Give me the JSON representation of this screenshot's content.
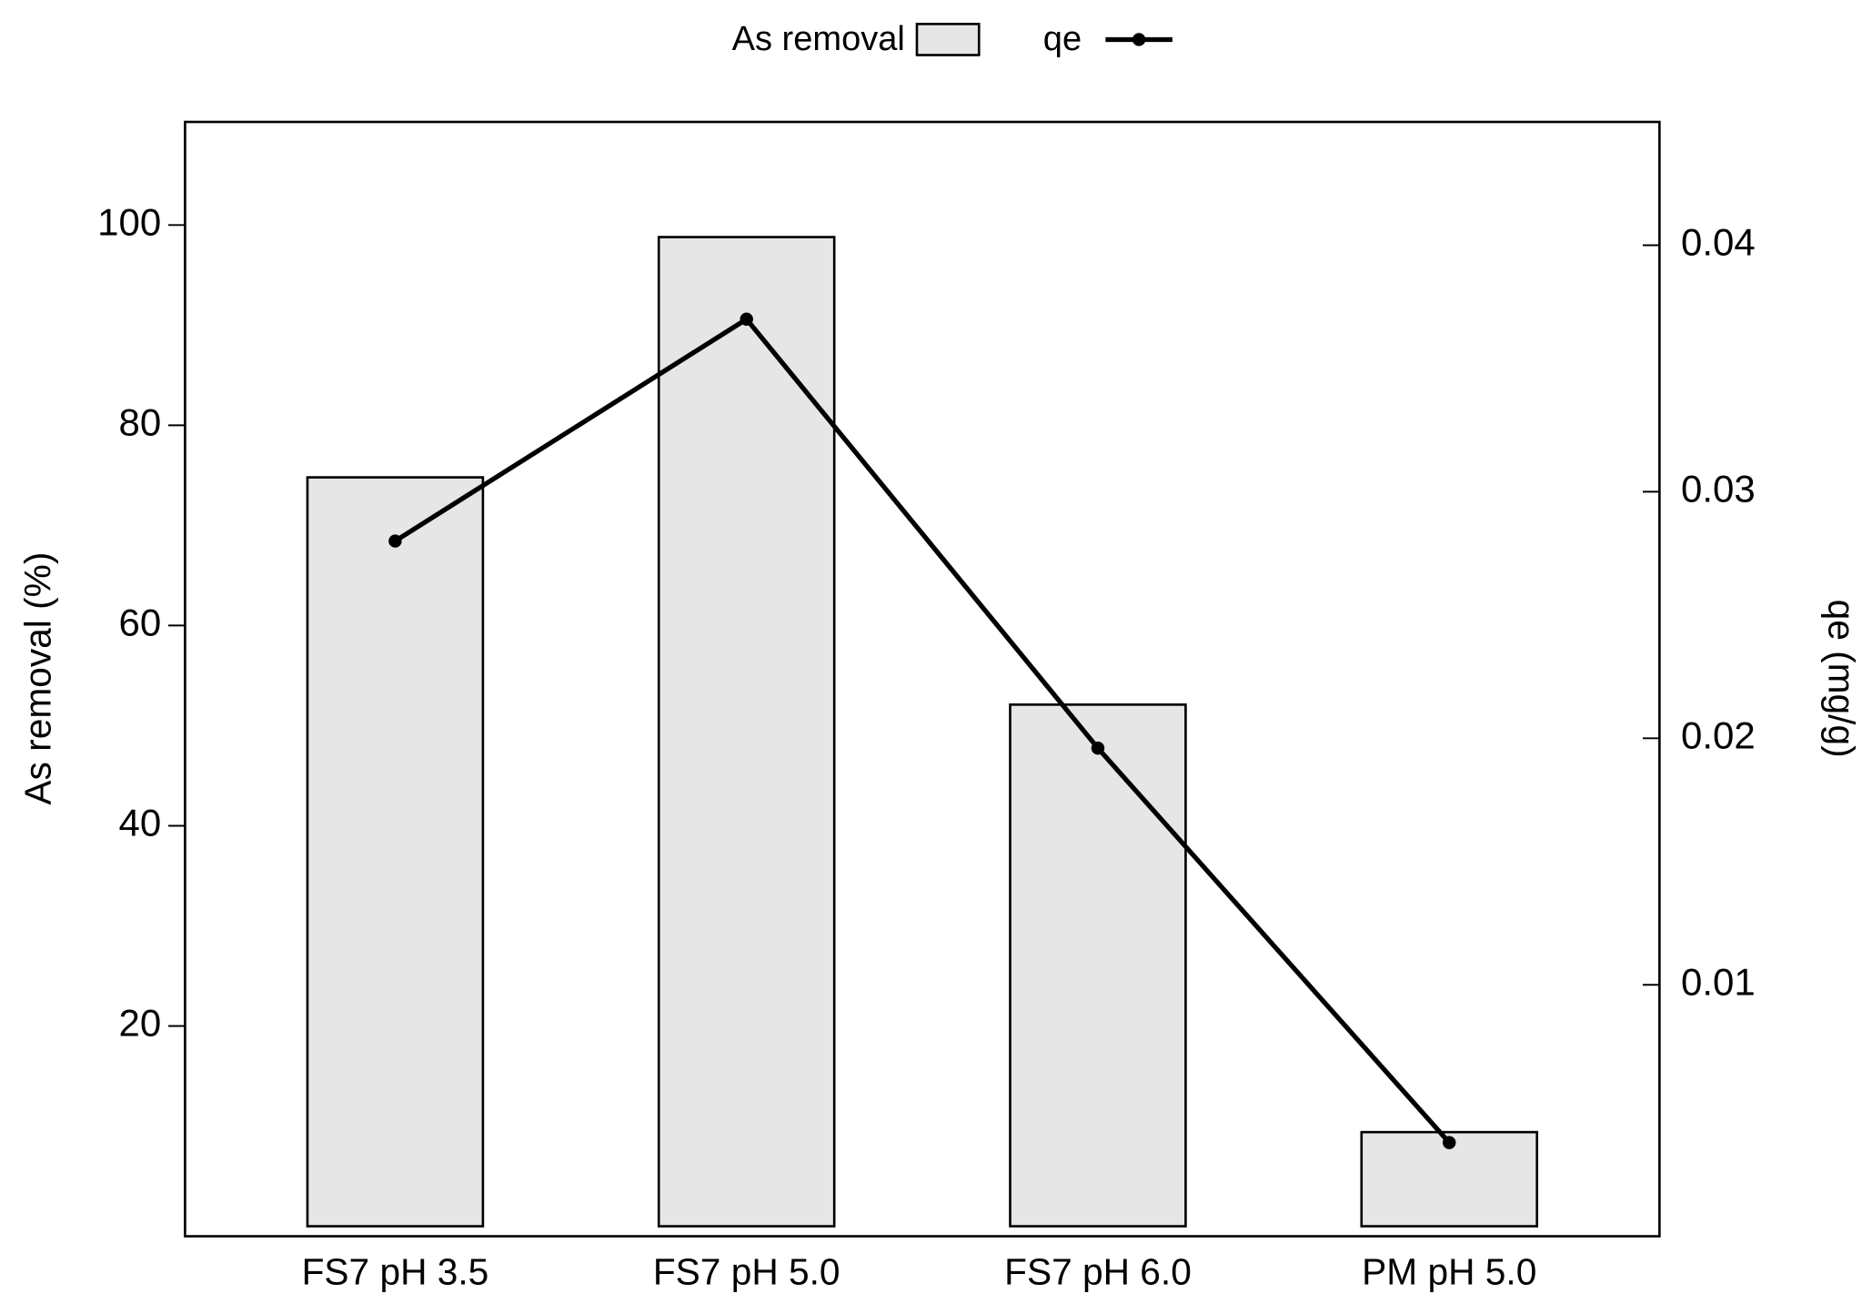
{
  "chart_data": {
    "type": "bar_line",
    "categories": [
      "FS7 pH 3.5",
      "FS7 pH 5.0",
      "FS7 pH 6.0",
      "PM pH 5.0"
    ],
    "series": [
      {
        "name": "As removal",
        "type": "bar",
        "color": "#e6e6e6",
        "values": [
          74.8,
          98.8,
          52.1,
          9.4
        ]
      },
      {
        "name": "qe",
        "type": "line",
        "axis": "y2",
        "color": "#000000",
        "values": [
          0.028,
          0.037,
          0.0196,
          0.0036
        ]
      }
    ],
    "y_label": "As removal (%)",
    "y2_label": "qe (mg/g)",
    "ylim": [
      -1,
      110.3
    ],
    "yticks": [
      20,
      40,
      60,
      80,
      100
    ],
    "y2lim": [
      -0.0002,
      0.045
    ],
    "y2ticks": [
      0.01,
      0.02,
      0.03,
      0.04
    ],
    "legend": "top"
  }
}
